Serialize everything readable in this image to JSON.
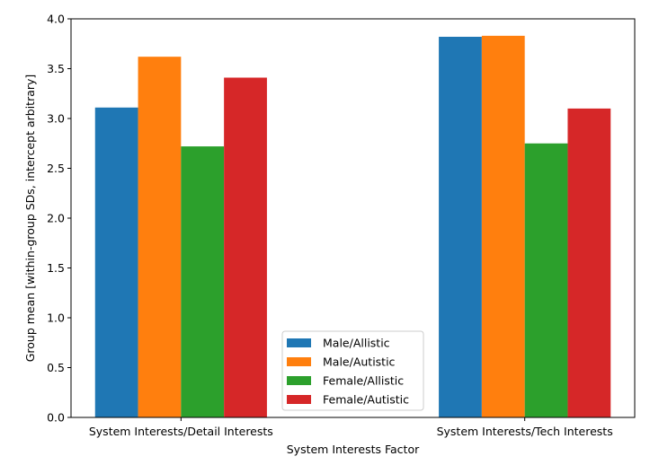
{
  "chart_data": {
    "type": "bar",
    "categories": [
      "System Interests/Detail Interests",
      "System Interests/Tech Interests"
    ],
    "series": [
      {
        "name": "Male/Allistic",
        "values": [
          3.11,
          3.82
        ],
        "color": "#1f77b4"
      },
      {
        "name": "Male/Autistic",
        "values": [
          3.62,
          3.83
        ],
        "color": "#ff7f0e"
      },
      {
        "name": "Female/Allistic",
        "values": [
          2.72,
          2.75
        ],
        "color": "#2ca02c"
      },
      {
        "name": "Female/Autistic",
        "values": [
          3.41,
          3.1
        ],
        "color": "#d62728"
      }
    ],
    "xlabel": "System Interests Factor",
    "ylabel": "Group mean [within-group SDs, intercept arbitrary]",
    "ylim": [
      0,
      4.0
    ],
    "yticks": [
      "0.0",
      "0.5",
      "1.0",
      "1.5",
      "2.0",
      "2.5",
      "3.0",
      "3.5",
      "4.0"
    ],
    "grid": false,
    "legend_position": "bottom-center"
  }
}
